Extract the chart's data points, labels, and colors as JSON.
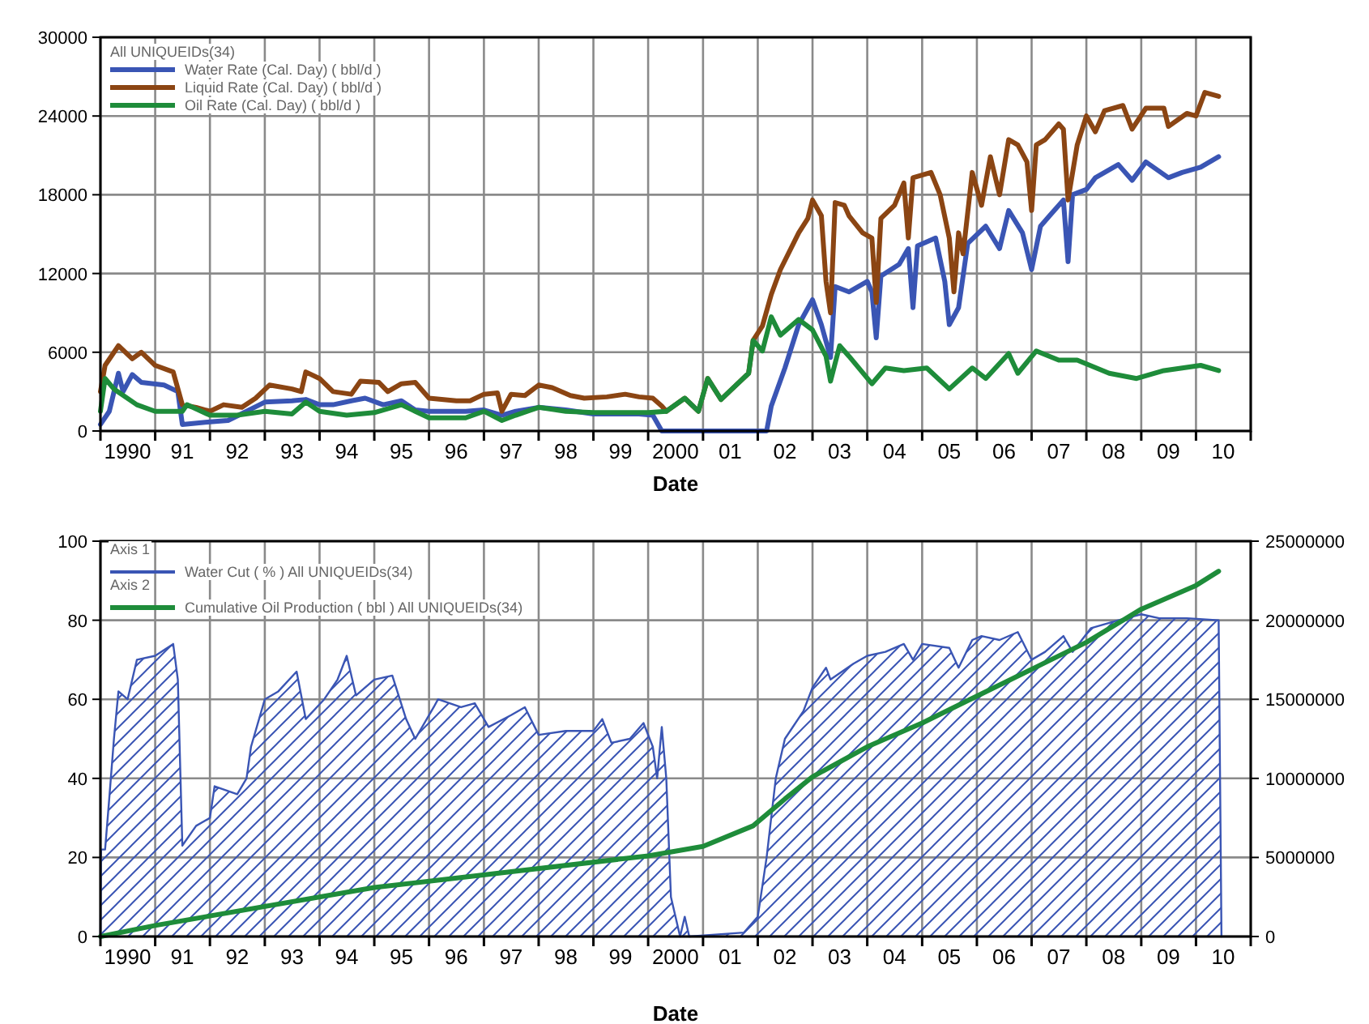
{
  "chart_data": [
    {
      "type": "line",
      "xlabel": "Date",
      "legend_title": "All UNIQUEIDs(34)",
      "legend": "top left",
      "grid": true,
      "xlim": [
        "1990-01-01",
        "2011-01-01"
      ],
      "xticks": [
        {
          "value": "1990-01-01",
          "label": null
        },
        {
          "value": "1990-07-01",
          "label": "1990"
        },
        {
          "value": "1991-01-01",
          "label": null
        },
        {
          "value": "1991-07-01",
          "label": "91"
        },
        {
          "value": "1992-01-01",
          "label": null
        },
        {
          "value": "1992-07-01",
          "label": "92"
        },
        {
          "value": "1993-01-01",
          "label": null
        },
        {
          "value": "1993-07-01",
          "label": "93"
        },
        {
          "value": "1994-01-01",
          "label": null
        },
        {
          "value": "1994-07-01",
          "label": "94"
        },
        {
          "value": "1995-01-01",
          "label": null
        },
        {
          "value": "1995-07-01",
          "label": "95"
        },
        {
          "value": "1996-01-01",
          "label": null
        },
        {
          "value": "1996-07-01",
          "label": "96"
        },
        {
          "value": "1997-01-01",
          "label": null
        },
        {
          "value": "1997-07-01",
          "label": "97"
        },
        {
          "value": "1998-01-01",
          "label": null
        },
        {
          "value": "1998-07-01",
          "label": "98"
        },
        {
          "value": "1999-01-01",
          "label": null
        },
        {
          "value": "1999-07-01",
          "label": "99"
        },
        {
          "value": "2000-01-01",
          "label": null
        },
        {
          "value": "2000-07-01",
          "label": "2000"
        },
        {
          "value": "2001-01-01",
          "label": null
        },
        {
          "value": "2001-07-01",
          "label": "01"
        },
        {
          "value": "2002-01-01",
          "label": null
        },
        {
          "value": "2002-07-01",
          "label": "02"
        },
        {
          "value": "2003-01-01",
          "label": null
        },
        {
          "value": "2003-07-01",
          "label": "03"
        },
        {
          "value": "2004-01-01",
          "label": null
        },
        {
          "value": "2004-07-01",
          "label": "04"
        },
        {
          "value": "2005-01-01",
          "label": null
        },
        {
          "value": "2005-07-01",
          "label": "05"
        },
        {
          "value": "2006-01-01",
          "label": null
        },
        {
          "value": "2006-07-01",
          "label": "06"
        },
        {
          "value": "2007-01-01",
          "label": null
        },
        {
          "value": "2007-07-01",
          "label": "07"
        },
        {
          "value": "2008-01-01",
          "label": null
        },
        {
          "value": "2008-07-01",
          "label": "08"
        },
        {
          "value": "2009-01-01",
          "label": null
        },
        {
          "value": "2009-07-01",
          "label": "09"
        },
        {
          "value": "2010-01-01",
          "label": null
        },
        {
          "value": "2010-07-01",
          "label": "10"
        },
        {
          "value": "2011-01-01",
          "label": null
        }
      ],
      "ylim": [
        0,
        30000
      ],
      "yticks": [
        0,
        6000,
        12000,
        18000,
        24000,
        30000
      ],
      "series": [
        {
          "name": "Water Rate (Cal. Day) ( bbl/d )",
          "color": "#3a55b4",
          "x": [
            "1990-01",
            "1990-03",
            "1990-05",
            "1990-06",
            "1990-08",
            "1990-10",
            "1991-03",
            "1991-06",
            "1991-07",
            "1992-01",
            "1992-05",
            "1992-09",
            "1993-01",
            "1993-07",
            "1993-10",
            "1994-01",
            "1994-04",
            "1994-08",
            "1994-11",
            "1995-03",
            "1995-07",
            "1995-10",
            "1996-01",
            "1996-09",
            "1997-01",
            "1997-05",
            "1997-08",
            "1998-01",
            "1998-07",
            "1999-01",
            "1999-07",
            "1999-11",
            "2000-02",
            "2000-04",
            "2002-03",
            "2002-04",
            "2002-07",
            "2002-10",
            "2003-01",
            "2003-03",
            "2003-05",
            "2003-06",
            "2003-09",
            "2004-01",
            "2004-02",
            "2004-03",
            "2004-04",
            "2004-08",
            "2004-10",
            "2004-11",
            "2004-12",
            "2005-04",
            "2005-06",
            "2005-07",
            "2005-09",
            "2005-11",
            "2006-03",
            "2006-06",
            "2006-08",
            "2006-11",
            "2007-01",
            "2007-03",
            "2007-05",
            "2007-08",
            "2007-09",
            "2007-10",
            "2008-01",
            "2008-03",
            "2008-08",
            "2008-11",
            "2009-02",
            "2009-07",
            "2009-10",
            "2010-02",
            "2010-06"
          ],
          "values": [
            500,
            1500,
            4400,
            3000,
            4300,
            3700,
            3500,
            3000,
            500,
            700,
            800,
            1500,
            2200,
            2300,
            2400,
            2000,
            2000,
            2300,
            2500,
            2000,
            2300,
            1600,
            1500,
            1500,
            1600,
            1200,
            1500,
            1800,
            1600,
            1300,
            1300,
            1300,
            1200,
            0,
            0,
            1900,
            4800,
            8100,
            10000,
            8100,
            5600,
            11000,
            10600,
            11400,
            10600,
            7100,
            11800,
            12700,
            13900,
            9400,
            14100,
            14700,
            11400,
            8100,
            9400,
            14300,
            15600,
            13900,
            16800,
            15100,
            12300,
            15600,
            16400,
            17600,
            12900,
            18000,
            18400,
            19300,
            20300,
            19100,
            20500,
            19300,
            19700,
            20100,
            20900
          ]
        },
        {
          "name": "Liquid Rate (Cal. Day) ( bbl/d )",
          "color": "#8b4513",
          "x": [
            "1990-01",
            "1990-02",
            "1990-05",
            "1990-08",
            "1990-10",
            "1991-01",
            "1991-05",
            "1991-07",
            "1991-10",
            "1992-01",
            "1992-04",
            "1992-08",
            "1992-11",
            "1993-02",
            "1993-07",
            "1993-09",
            "1993-10",
            "1994-01",
            "1994-04",
            "1994-08",
            "1994-10",
            "1995-02",
            "1995-04",
            "1995-07",
            "1995-10",
            "1996-01",
            "1996-07",
            "1996-10",
            "1997-01",
            "1997-04",
            "1997-05",
            "1997-07",
            "1997-10",
            "1998-01",
            "1998-04",
            "1998-08",
            "1998-11",
            "1999-04",
            "1999-08",
            "1999-11",
            "2000-02",
            "2000-04",
            "2000-05",
            "2000-09",
            "2000-12",
            "2001-02",
            "2001-05",
            "2001-08",
            "2001-11",
            "2001-12",
            "2002-02",
            "2002-04",
            "2002-06",
            "2002-10",
            "2002-12",
            "2003-01",
            "2003-03",
            "2003-04",
            "2003-05",
            "2003-06",
            "2003-08",
            "2003-09",
            "2003-12",
            "2004-02",
            "2004-03",
            "2004-04",
            "2004-07",
            "2004-09",
            "2004-10",
            "2004-11",
            "2005-03",
            "2005-05",
            "2005-07",
            "2005-08",
            "2005-09",
            "2005-10",
            "2005-12",
            "2006-02",
            "2006-04",
            "2006-06",
            "2006-08",
            "2006-10",
            "2006-12",
            "2007-01",
            "2007-02",
            "2007-04",
            "2007-07",
            "2007-08",
            "2007-09",
            "2007-11",
            "2008-01",
            "2008-03",
            "2008-05",
            "2008-09",
            "2008-11",
            "2009-02",
            "2009-06",
            "2009-07",
            "2009-11",
            "2010-01",
            "2010-03",
            "2010-06"
          ],
          "values": [
            3000,
            5000,
            6500,
            5500,
            6000,
            5000,
            4500,
            2000,
            1800,
            1500,
            2000,
            1800,
            2500,
            3500,
            3200,
            3000,
            4500,
            4000,
            3000,
            2800,
            3800,
            3700,
            3000,
            3600,
            3700,
            2500,
            2300,
            2300,
            2800,
            2900,
            1500,
            2800,
            2700,
            3500,
            3300,
            2700,
            2500,
            2600,
            2800,
            2600,
            2500,
            1900,
            1500,
            2500,
            1500,
            4000,
            2400,
            3400,
            4400,
            6900,
            8000,
            10400,
            12300,
            15100,
            16200,
            17600,
            16400,
            11400,
            9000,
            17400,
            17200,
            16400,
            15100,
            14700,
            9800,
            16200,
            17200,
            18900,
            14700,
            19300,
            19700,
            18000,
            14700,
            10600,
            15100,
            13500,
            19700,
            17200,
            20900,
            18000,
            22200,
            21800,
            20500,
            16800,
            21800,
            22200,
            23400,
            23000,
            17600,
            21800,
            24000,
            22800,
            24400,
            24800,
            23000,
            24600,
            24600,
            23200,
            24200,
            24000,
            25800,
            25500
          ]
        },
        {
          "name": "Oil Rate (Cal. Day) ( bbl/d )",
          "color": "#1e8c3a",
          "x": [
            "1990-01",
            "1990-02",
            "1990-04",
            "1990-09",
            "1991-01",
            "1991-07",
            "1991-08",
            "1992-01",
            "1992-07",
            "1993-01",
            "1993-07",
            "1993-10",
            "1994-01",
            "1994-07",
            "1995-01",
            "1995-07",
            "1995-10",
            "1996-01",
            "1996-09",
            "1997-01",
            "1997-05",
            "1997-08",
            "1998-01",
            "1998-07",
            "1999-01",
            "2000-01",
            "2000-05",
            "2000-09",
            "2000-12",
            "2001-02",
            "2001-05",
            "2001-08",
            "2001-11",
            "2001-12",
            "2002-02",
            "2002-04",
            "2002-06",
            "2002-10",
            "2003-01",
            "2003-04",
            "2003-05",
            "2003-07",
            "2003-09",
            "2004-02",
            "2004-05",
            "2004-09",
            "2005-02",
            "2005-07",
            "2005-12",
            "2006-03",
            "2006-08",
            "2006-10",
            "2007-02",
            "2007-07",
            "2007-11",
            "2008-06",
            "2008-12",
            "2009-06",
            "2010-02",
            "2010-06"
          ],
          "values": [
            1500,
            4000,
            3200,
            2000,
            1500,
            1500,
            2000,
            1200,
            1200,
            1500,
            1300,
            2200,
            1500,
            1200,
            1400,
            2000,
            1500,
            1000,
            1000,
            1500,
            800,
            1200,
            1800,
            1500,
            1400,
            1400,
            1500,
            2500,
            1500,
            4000,
            2400,
            3400,
            4400,
            6900,
            6100,
            8700,
            7300,
            8500,
            7700,
            5700,
            3800,
            6500,
            5700,
            3600,
            4800,
            4600,
            4800,
            3200,
            4800,
            4000,
            5900,
            4400,
            6100,
            5400,
            5400,
            4400,
            4000,
            4600,
            5000,
            4600
          ]
        }
      ]
    },
    {
      "type": "line",
      "xlabel": "Date",
      "legend": "top left",
      "grid": true,
      "annotations": [
        "Axis 1",
        "Axis 2"
      ],
      "xlim": [
        "1990-01-01",
        "2011-01-01"
      ],
      "xticks": [
        {
          "value": "1990-01-01",
          "label": null
        },
        {
          "value": "1990-07-01",
          "label": "1990"
        },
        {
          "value": "1991-01-01",
          "label": null
        },
        {
          "value": "1991-07-01",
          "label": "91"
        },
        {
          "value": "1992-01-01",
          "label": null
        },
        {
          "value": "1992-07-01",
          "label": "92"
        },
        {
          "value": "1993-01-01",
          "label": null
        },
        {
          "value": "1993-07-01",
          "label": "93"
        },
        {
          "value": "1994-01-01",
          "label": null
        },
        {
          "value": "1994-07-01",
          "label": "94"
        },
        {
          "value": "1995-01-01",
          "label": null
        },
        {
          "value": "1995-07-01",
          "label": "95"
        },
        {
          "value": "1996-01-01",
          "label": null
        },
        {
          "value": "1996-07-01",
          "label": "96"
        },
        {
          "value": "1997-01-01",
          "label": null
        },
        {
          "value": "1997-07-01",
          "label": "97"
        },
        {
          "value": "1998-01-01",
          "label": null
        },
        {
          "value": "1998-07-01",
          "label": "98"
        },
        {
          "value": "1999-01-01",
          "label": null
        },
        {
          "value": "1999-07-01",
          "label": "99"
        },
        {
          "value": "2000-01-01",
          "label": null
        },
        {
          "value": "2000-07-01",
          "label": "2000"
        },
        {
          "value": "2001-01-01",
          "label": null
        },
        {
          "value": "2001-07-01",
          "label": "01"
        },
        {
          "value": "2002-01-01",
          "label": null
        },
        {
          "value": "2002-07-01",
          "label": "02"
        },
        {
          "value": "2003-01-01",
          "label": null
        },
        {
          "value": "2003-07-01",
          "label": "03"
        },
        {
          "value": "2004-01-01",
          "label": null
        },
        {
          "value": "2004-07-01",
          "label": "04"
        },
        {
          "value": "2005-01-01",
          "label": null
        },
        {
          "value": "2005-07-01",
          "label": "05"
        },
        {
          "value": "2006-01-01",
          "label": null
        },
        {
          "value": "2006-07-01",
          "label": "06"
        },
        {
          "value": "2007-01-01",
          "label": null
        },
        {
          "value": "2007-07-01",
          "label": "07"
        },
        {
          "value": "2008-01-01",
          "label": null
        },
        {
          "value": "2008-07-01",
          "label": "08"
        },
        {
          "value": "2009-01-01",
          "label": null
        },
        {
          "value": "2009-07-01",
          "label": "09"
        },
        {
          "value": "2010-01-01",
          "label": null
        },
        {
          "value": "2010-07-01",
          "label": "10"
        },
        {
          "value": "2011-01-01",
          "label": null
        }
      ],
      "ylim": [
        0,
        100
      ],
      "yticks": [
        0,
        20,
        40,
        60,
        80,
        100
      ],
      "y2lim": [
        0,
        25000000
      ],
      "y2ticks": [
        0,
        5000000,
        10000000,
        15000000,
        20000000,
        25000000
      ],
      "series": [
        {
          "name": "Water Cut ( % ) All UNIQUEIDs(34)",
          "type": "area",
          "color": "#3a55b4",
          "x": [
            "1990-01-01",
            "1990-01-05",
            "1990-02",
            "1990-03",
            "1990-04",
            "1990-05",
            "1990-07",
            "1990-09",
            "1991-01",
            "1991-05",
            "1991-06",
            "1991-07",
            "1991-10",
            "1992-01",
            "1992-02",
            "1992-07",
            "1992-09",
            "1992-10",
            "1993-01",
            "1993-04",
            "1993-08",
            "1993-10",
            "1994-02",
            "1994-05",
            "1994-07",
            "1994-09",
            "1995-01",
            "1995-05",
            "1995-08",
            "1995-10",
            "1996-02",
            "1996-03",
            "1996-08",
            "1996-11",
            "1997-02",
            "1997-07",
            "1997-10",
            "1998-01",
            "1998-07",
            "1999-01",
            "1999-03",
            "1999-05",
            "1999-09",
            "1999-12",
            "2000-02",
            "2000-03",
            "2000-04",
            "2000-05",
            "2000-06",
            "2000-08",
            "2000-09",
            "2000-10",
            "2001-10",
            "2002-01",
            "2002-03",
            "2002-05",
            "2002-07",
            "2002-11",
            "2003-01",
            "2003-04",
            "2003-05",
            "2003-10",
            "2004-01",
            "2004-05",
            "2004-09",
            "2004-11",
            "2005-01",
            "2005-07",
            "2005-09",
            "2005-12",
            "2006-02",
            "2006-06",
            "2006-10",
            "2007-01",
            "2007-04",
            "2007-08",
            "2007-10",
            "2008-02",
            "2008-08",
            "2009-01",
            "2009-05",
            "2009-11",
            "2010-06-01",
            "2010-06-20"
          ],
          "values": [
            0,
            22,
            22,
            35,
            50,
            62,
            60,
            70,
            71,
            74,
            65,
            23,
            28,
            30,
            38,
            36,
            40,
            48,
            60,
            62,
            67,
            55,
            60,
            65,
            71,
            61,
            65,
            66,
            55,
            50,
            58,
            60,
            58,
            59,
            53,
            56,
            58,
            51,
            52,
            52,
            55,
            49,
            50,
            54,
            48,
            40,
            53,
            40,
            10,
            0,
            5,
            0,
            1,
            5,
            20,
            40,
            50,
            57,
            63,
            68,
            65,
            69,
            71,
            72,
            74,
            70,
            74,
            73,
            68,
            75,
            76,
            75,
            77,
            70,
            72,
            76,
            72,
            78,
            80,
            81.5,
            80.5,
            80.5,
            80,
            0
          ]
        },
        {
          "name": "Cumulative Oil Production ( bbl ) All UNIQUEIDs(34)",
          "type": "line",
          "axis": "y2",
          "color": "#1e8c3a",
          "x": [
            "1990-01",
            "1991-01",
            "1995-01",
            "2000-01",
            "2001-01",
            "2001-12",
            "2002-07",
            "2003-01",
            "2004-01",
            "2005-01",
            "2006-01",
            "2007-01",
            "2008-01",
            "2009-01",
            "2010-01",
            "2010-06"
          ],
          "values": [
            0,
            700000,
            3100000,
            5100000,
            5700000,
            7000000,
            8700000,
            10100000,
            12000000,
            13500000,
            15200000,
            16900000,
            18600000,
            20700000,
            22200000,
            23100000
          ]
        }
      ]
    }
  ]
}
